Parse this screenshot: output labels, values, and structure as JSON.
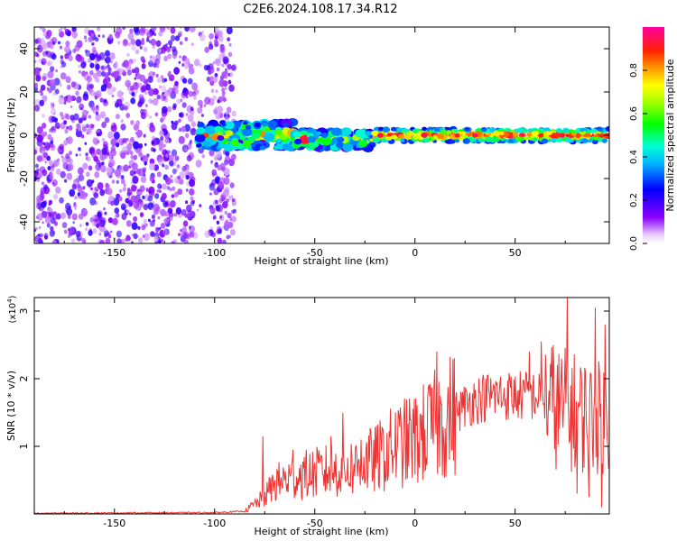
{
  "title": "C2E6.2024.108.17.34.R12",
  "colors": {
    "snr_line": "#ee3333",
    "axis": "#000000",
    "background": "#ffffff"
  },
  "chart_data": [
    {
      "type": "heatmap",
      "title": "C2E6.2024.108.17.34.R12",
      "xlabel": "Height of straight line (km)",
      "ylabel": "Frequency (Hz)",
      "xlim": [
        -190,
        97
      ],
      "ylim": [
        -50,
        50
      ],
      "x_ticks": [
        -150,
        -100,
        -50,
        0,
        50
      ],
      "y_ticks": [
        -40,
        -20,
        0,
        20,
        40
      ],
      "colorbar": {
        "label": "Normalized spectral amplitude",
        "range": [
          0,
          1
        ],
        "ticks": [
          "0.0",
          "0.2",
          "0.4",
          "0.6",
          "0.8"
        ],
        "colormap": "rainbow (white-violet-blue-cyan-green-yellow-orange-red-magenta)"
      },
      "features": [
        {
          "x_range": [
            -190,
            -90
          ],
          "freq_range": [
            -50,
            50
          ],
          "amplitude": "low (0.0–0.3), broadband scattered noise"
        },
        {
          "x_range": [
            -108,
            -60
          ],
          "freq_center": 0,
          "freq_halfwidth": 6,
          "amplitude": "0.3–0.9, irregular"
        },
        {
          "x_range": [
            -60,
            -20
          ],
          "freq_center": -2,
          "freq_halfwidth": 4,
          "amplitude": "0.3–0.7"
        },
        {
          "x_range": [
            -20,
            97
          ],
          "freq_center": 0,
          "freq_halfwidth": 3,
          "amplitude": "0.5–0.95, narrow carrier line"
        }
      ]
    },
    {
      "type": "line",
      "xlabel": "Height of straight line (km)",
      "ylabel": "SNR (10 * v/v)",
      "y_multiplier": "(x10^4)",
      "xlim": [
        -190,
        97
      ],
      "ylim": [
        0,
        3.2
      ],
      "x_ticks": [
        -150,
        -100,
        -50,
        0,
        50
      ],
      "y_ticks": [
        1,
        2,
        3
      ],
      "y_unit": "10^4",
      "envelope": [
        {
          "x": -190,
          "y": 0.01
        },
        {
          "x": -100,
          "y": 0.02
        },
        {
          "x": -85,
          "y": 0.04
        },
        {
          "x": -75,
          "y": 0.25
        },
        {
          "x": -70,
          "y": 0.45
        },
        {
          "x": -60,
          "y": 0.55
        },
        {
          "x": -50,
          "y": 0.6
        },
        {
          "x": -40,
          "y": 0.65
        },
        {
          "x": -30,
          "y": 0.7
        },
        {
          "x": -20,
          "y": 0.8
        },
        {
          "x": -10,
          "y": 1.0
        },
        {
          "x": 0,
          "y": 1.1
        },
        {
          "x": 10,
          "y": 1.3
        },
        {
          "x": 20,
          "y": 1.5
        },
        {
          "x": 30,
          "y": 1.7
        },
        {
          "x": 40,
          "y": 1.75
        },
        {
          "x": 50,
          "y": 1.75
        },
        {
          "x": 60,
          "y": 1.75
        },
        {
          "x": 70,
          "y": 1.6
        },
        {
          "x": 80,
          "y": 1.5
        },
        {
          "x": 90,
          "y": 1.4
        },
        {
          "x": 97,
          "y": 1.5
        }
      ],
      "peaks": [
        {
          "x": -76,
          "y": 1.15
        },
        {
          "x": -61,
          "y": 0.95
        },
        {
          "x": -42,
          "y": 1.15
        },
        {
          "x": -36,
          "y": 1.5
        },
        {
          "x": -27,
          "y": 1.1
        },
        {
          "x": 11,
          "y": 2.4
        },
        {
          "x": 57,
          "y": 2.4
        },
        {
          "x": 63,
          "y": 2.55
        },
        {
          "x": 76,
          "y": 3.2
        },
        {
          "x": 85,
          "y": 2.1
        },
        {
          "x": 90,
          "y": 3.05
        },
        {
          "x": 95,
          "y": 2.8
        }
      ],
      "dips": [
        {
          "x": 81,
          "y": 0.3
        },
        {
          "x": 87,
          "y": 0.25
        },
        {
          "x": 93,
          "y": 0.1
        }
      ]
    }
  ]
}
